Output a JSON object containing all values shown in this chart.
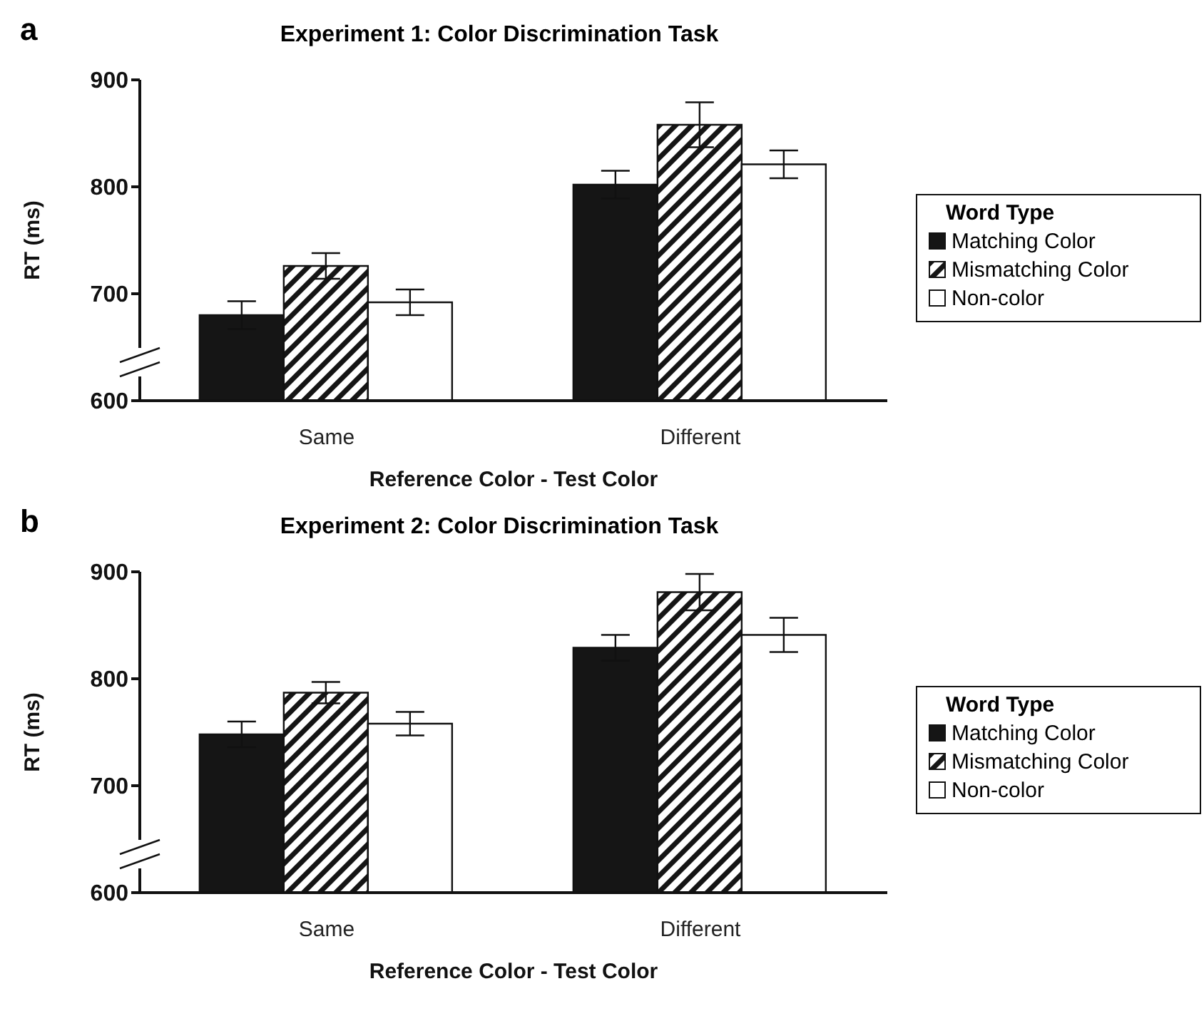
{
  "chart_data": [
    {
      "type": "bar",
      "title": "Experiment 1: Color Discrimination Task",
      "annotations": [
        "a"
      ],
      "xlabel": "Reference Color - Test Color",
      "ylabel": "RT (ms)",
      "legend_title": "Word Type",
      "categories": [
        "Same",
        "Different"
      ],
      "series": [
        {
          "name": "Matching Color",
          "color": "#151515",
          "values": [
            680,
            802
          ],
          "errors": [
            13,
            13
          ]
        },
        {
          "name": "Mismatching Color",
          "color": "#151515",
          "values": [
            726,
            858
          ],
          "errors": [
            12,
            21
          ]
        },
        {
          "name": "Non-color",
          "color": "#ffffff",
          "values": [
            692,
            821
          ],
          "errors": [
            12,
            13
          ]
        }
      ],
      "ylim": [
        600,
        900
      ],
      "yticks": [
        600,
        700,
        800,
        900
      ],
      "grid": false,
      "legend": "right"
    },
    {
      "type": "bar",
      "title": "Experiment 2: Color Discrimination Task",
      "annotations": [
        "b"
      ],
      "xlabel": "Reference Color - Test Color",
      "ylabel": "RT (ms)",
      "legend_title": "Word Type",
      "categories": [
        "Same",
        "Different"
      ],
      "series": [
        {
          "name": "Matching Color",
          "color": "#151515",
          "values": [
            748,
            829
          ],
          "errors": [
            12,
            12
          ]
        },
        {
          "name": "Mismatching Color",
          "color": "#151515",
          "values": [
            787,
            881
          ],
          "errors": [
            10,
            17
          ]
        },
        {
          "name": "Non-color",
          "color": "#ffffff",
          "values": [
            758,
            841
          ],
          "errors": [
            11,
            16
          ]
        }
      ],
      "ylim": [
        600,
        900
      ],
      "yticks": [
        600,
        700,
        800,
        900
      ],
      "grid": false,
      "legend": "right"
    }
  ]
}
